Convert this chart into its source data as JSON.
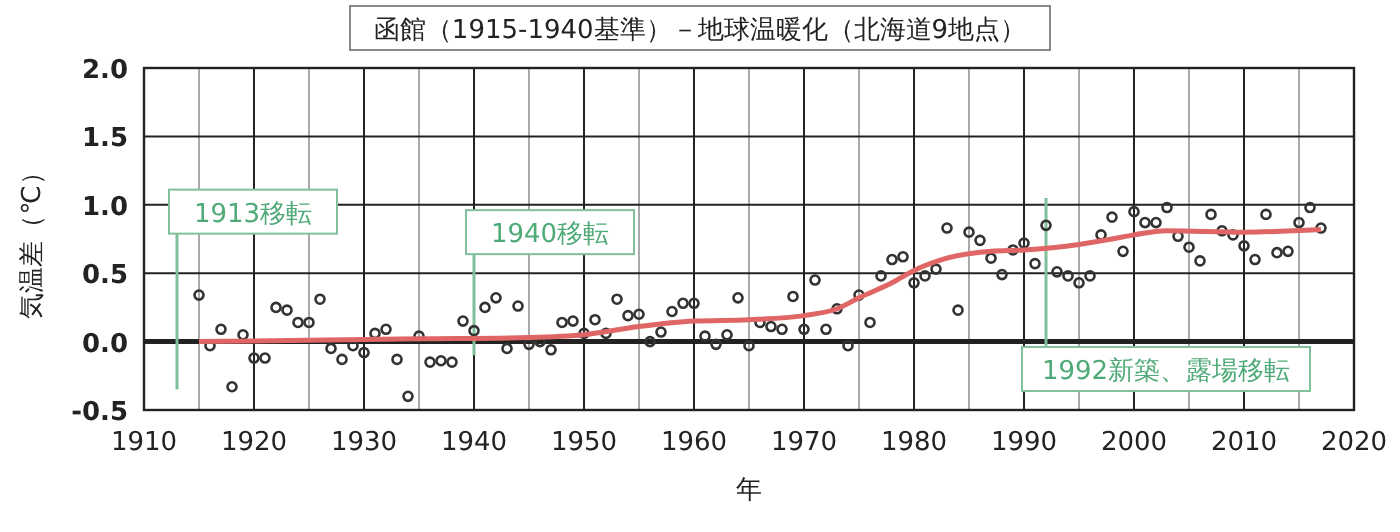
{
  "chart_data": {
    "type": "scatter",
    "title": "函館（1915-1940基準）－地球温暖化（北海道9地点）",
    "xlabel": "年",
    "ylabel": "気温差（℃）",
    "xlim": [
      1910,
      2020
    ],
    "xticks": [
      1910,
      1920,
      1930,
      1940,
      1950,
      1960,
      1970,
      1980,
      1990,
      2000,
      2010,
      2020
    ],
    "ylim": [
      -0.5,
      2.0
    ],
    "yticks": [
      {
        "value": -0.5,
        "label": "-0.5"
      },
      {
        "value": 0,
        "label": "0.0"
      },
      {
        "value": 0.5,
        "label": "0.5"
      },
      {
        "value": 1,
        "label": "1.0"
      },
      {
        "value": 1.5,
        "label": "1.5"
      },
      {
        "value": 2,
        "label": "2.0"
      }
    ],
    "grid": true,
    "series": [
      {
        "marker": "circle",
        "color": "#333333",
        "x": [
          1915,
          1916,
          1917,
          1918,
          1919,
          1920,
          1921,
          1922,
          1923,
          1924,
          1925,
          1926,
          1927,
          1928,
          1929,
          1930,
          1931,
          1932,
          1933,
          1934,
          1935,
          1936,
          1937,
          1938,
          1939,
          1940,
          1941,
          1942,
          1943,
          1944,
          1945,
          1946,
          1947,
          1948,
          1949,
          1950,
          1951,
          1952,
          1953,
          1954,
          1955,
          1956,
          1957,
          1958,
          1959,
          1960,
          1961,
          1962,
          1963,
          1964,
          1965,
          1966,
          1967,
          1968,
          1969,
          1970,
          1971,
          1972,
          1973,
          1974,
          1975,
          1976,
          1977,
          1978,
          1979,
          1980,
          1981,
          1982,
          1983,
          1984,
          1985,
          1986,
          1987,
          1988,
          1989,
          1990,
          1991,
          1992,
          1993,
          1994,
          1995,
          1996,
          1997,
          1998,
          1999,
          2000,
          2001,
          2002,
          2003,
          2004,
          2005,
          2006,
          2007,
          2008,
          2009,
          2010,
          2011,
          2012,
          2013,
          2014,
          2015,
          2016,
          2017
        ],
        "values": [
          0.34,
          -0.03,
          0.09,
          -0.33,
          0.05,
          -0.12,
          -0.12,
          0.25,
          0.23,
          0.14,
          0.14,
          0.31,
          -0.05,
          -0.13,
          -0.03,
          -0.08,
          0.06,
          0.09,
          -0.13,
          -0.4,
          0.04,
          -0.15,
          -0.14,
          -0.15,
          0.15,
          0.08,
          0.25,
          0.32,
          -0.05,
          0.26,
          -0.02,
          0.0,
          -0.06,
          0.14,
          0.15,
          0.06,
          0.16,
          0.06,
          0.31,
          0.19,
          0.2,
          0.0,
          0.07,
          0.22,
          0.28,
          0.28,
          0.04,
          -0.02,
          0.05,
          0.32,
          -0.03,
          0.14,
          0.11,
          0.09,
          0.33,
          0.09,
          0.45,
          0.09,
          0.24,
          -0.03,
          0.34,
          0.14,
          0.48,
          0.6,
          0.62,
          0.43,
          0.48,
          0.53,
          0.83,
          0.23,
          0.8,
          0.74,
          0.61,
          0.49,
          0.67,
          0.72,
          0.57,
          0.85,
          0.51,
          0.48,
          0.43,
          0.48,
          0.78,
          0.91,
          0.66,
          0.95,
          0.87,
          0.87,
          0.98,
          0.77,
          0.69,
          0.59,
          0.93,
          0.81,
          0.78,
          0.7,
          0.6,
          0.93,
          0.65,
          0.66,
          0.87,
          0.98,
          0.83
        ]
      },
      {
        "type": "line",
        "marker": "none",
        "color": "#e06666",
        "x": [
          1915,
          1925,
          1935,
          1945,
          1950,
          1955,
          1960,
          1965,
          1970,
          1973,
          1975,
          1978,
          1980,
          1983,
          1987,
          1990,
          1995,
          1998,
          2000,
          2003,
          2010,
          2017
        ],
        "values": [
          0.0,
          0.01,
          0.02,
          0.03,
          0.05,
          0.11,
          0.15,
          0.16,
          0.19,
          0.24,
          0.32,
          0.43,
          0.52,
          0.61,
          0.66,
          0.67,
          0.71,
          0.75,
          0.78,
          0.81,
          0.8,
          0.82
        ]
      }
    ],
    "ref_lines": [
      {
        "axis": "x",
        "value": 1913,
        "label": "1913移転",
        "color": "#7fbf9a"
      },
      {
        "axis": "x",
        "value": 1940,
        "label": "1940移転",
        "color": "#7fbf9a"
      },
      {
        "axis": "x",
        "value": 1992,
        "label": "1992新築、露場移転",
        "color": "#7fbf9a"
      }
    ]
  }
}
